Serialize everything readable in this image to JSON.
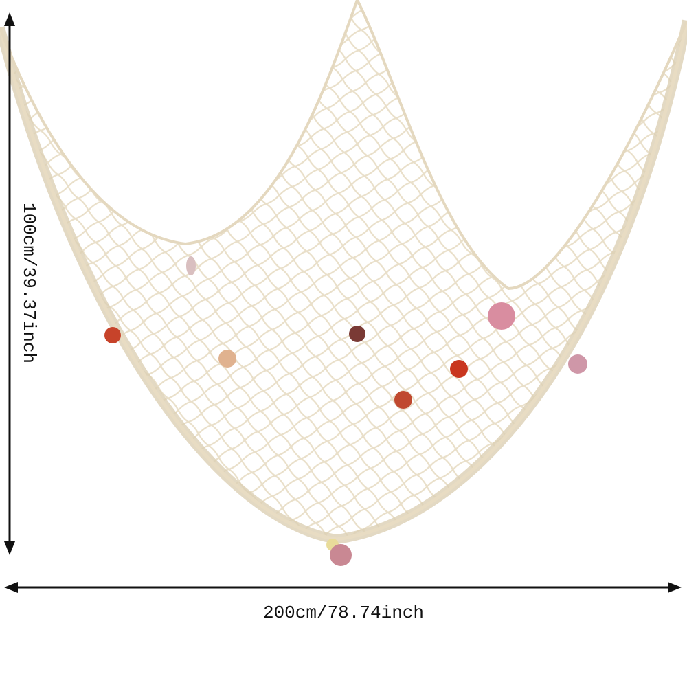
{
  "dimensions": {
    "height": "100cm/39.37inch",
    "width": "200cm/78.74inch"
  }
}
